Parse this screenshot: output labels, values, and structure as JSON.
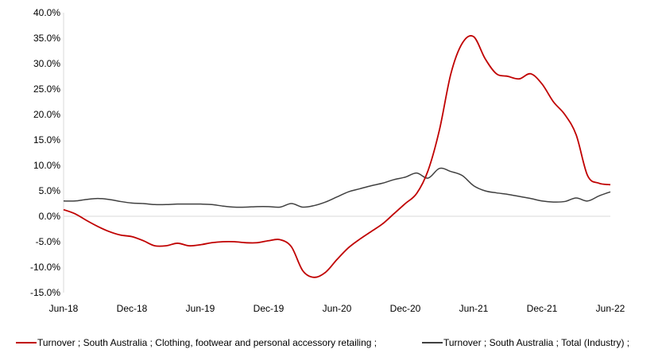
{
  "chart_data": {
    "type": "line",
    "title": "",
    "xlabel": "",
    "ylabel": "",
    "ylim": [
      -15,
      40
    ],
    "yticks": [
      -15,
      -10,
      -5,
      0,
      5,
      10,
      15,
      20,
      25,
      30,
      35,
      40
    ],
    "ytick_labels": [
      "-15.0%",
      "-10.0%",
      "-5.0%",
      "0.0%",
      "5.0%",
      "10.0%",
      "15.0%",
      "20.0%",
      "25.0%",
      "30.0%",
      "35.0%",
      "40.0%"
    ],
    "x_tick_labels": [
      "Jun-18",
      "Dec-18",
      "Jun-19",
      "Dec-19",
      "Jun-20",
      "Dec-20",
      "Jun-21",
      "Dec-21",
      "Jun-22"
    ],
    "x_tick_months": [
      0,
      6,
      12,
      18,
      24,
      30,
      36,
      42,
      48
    ],
    "grid": false,
    "legend_position": "bottom",
    "colors": {
      "clothing": "#c00000",
      "total": "#404040",
      "axis": "#d9d9d9"
    },
    "series": [
      {
        "name": "Turnover ;  South Australia ;  Clothing, footwear and personal accessory retailing ;",
        "key": "clothing",
        "x": [
          "Jun-18",
          "Jul-18",
          "Aug-18",
          "Sep-18",
          "Oct-18",
          "Nov-18",
          "Dec-18",
          "Jan-19",
          "Feb-19",
          "Mar-19",
          "Apr-19",
          "May-19",
          "Jun-19",
          "Jul-19",
          "Aug-19",
          "Sep-19",
          "Oct-19",
          "Nov-19",
          "Dec-19",
          "Jan-20",
          "Feb-20",
          "Mar-20",
          "Apr-20",
          "May-20",
          "Jun-20",
          "Jul-20",
          "Aug-20",
          "Sep-20",
          "Oct-20",
          "Nov-20",
          "Dec-20",
          "Jan-21",
          "Feb-21",
          "Mar-21",
          "Apr-21",
          "May-21",
          "Jun-21",
          "Jul-21",
          "Aug-21",
          "Sep-21",
          "Oct-21",
          "Nov-21",
          "Dec-21",
          "Jan-22",
          "Feb-22",
          "Mar-22",
          "Apr-22",
          "May-22",
          "Jun-22"
        ],
        "values": [
          1.3,
          0.5,
          -0.8,
          -2.0,
          -3.0,
          -3.7,
          -4.0,
          -4.8,
          -5.8,
          -5.8,
          -5.3,
          -5.8,
          -5.6,
          -5.2,
          -5.0,
          -5.0,
          -5.2,
          -5.2,
          -4.8,
          -4.6,
          -6.0,
          -10.7,
          -12.0,
          -11.0,
          -8.5,
          -6.2,
          -4.5,
          -3.0,
          -1.5,
          0.5,
          2.5,
          4.5,
          9.0,
          17.0,
          28.0,
          34.0,
          35.3,
          31.0,
          28.0,
          27.5,
          27.0,
          28.0,
          26.0,
          22.5,
          20.0,
          16.0,
          8.0,
          6.5,
          6.2
        ]
      },
      {
        "name": "Turnover ;  South Australia ;  Total (Industry) ;",
        "key": "total",
        "x": [
          "Jun-18",
          "Jul-18",
          "Aug-18",
          "Sep-18",
          "Oct-18",
          "Nov-18",
          "Dec-18",
          "Jan-19",
          "Feb-19",
          "Mar-19",
          "Apr-19",
          "May-19",
          "Jun-19",
          "Jul-19",
          "Aug-19",
          "Sep-19",
          "Oct-19",
          "Nov-19",
          "Dec-19",
          "Jan-20",
          "Feb-20",
          "Mar-20",
          "Apr-20",
          "May-20",
          "Jun-20",
          "Jul-20",
          "Aug-20",
          "Sep-20",
          "Oct-20",
          "Nov-20",
          "Dec-20",
          "Jan-21",
          "Feb-21",
          "Mar-21",
          "Apr-21",
          "May-21",
          "Jun-21",
          "Jul-21",
          "Aug-21",
          "Sep-21",
          "Oct-21",
          "Nov-21",
          "Dec-21",
          "Jan-22",
          "Feb-22",
          "Mar-22",
          "Apr-22",
          "May-22",
          "Jun-22"
        ],
        "values": [
          3.0,
          3.0,
          3.3,
          3.5,
          3.3,
          2.9,
          2.6,
          2.5,
          2.3,
          2.3,
          2.4,
          2.4,
          2.4,
          2.3,
          2.0,
          1.8,
          1.8,
          1.9,
          1.9,
          1.8,
          2.5,
          1.8,
          2.1,
          2.8,
          3.8,
          4.8,
          5.4,
          6.0,
          6.5,
          7.2,
          7.7,
          8.5,
          7.5,
          9.4,
          8.8,
          8.0,
          6.0,
          5.0,
          4.6,
          4.3,
          3.9,
          3.5,
          3.0,
          2.8,
          2.9,
          3.6,
          3.0,
          4.0,
          4.8
        ]
      }
    ]
  }
}
